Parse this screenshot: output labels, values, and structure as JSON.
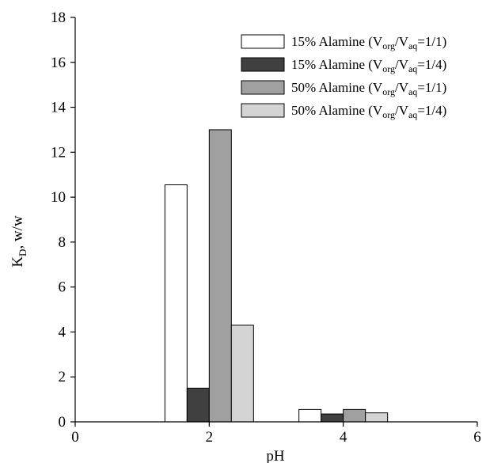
{
  "chart_data": {
    "type": "bar",
    "title": "",
    "xlabel": "pH",
    "ylabel": "K",
    "ylabel_sub": "D",
    "ylabel_unit": ", w/w",
    "x_categories": [
      2,
      4
    ],
    "xlim": [
      0,
      6
    ],
    "ylim": [
      0,
      18
    ],
    "xticks": [
      "0",
      "2",
      "4",
      "6"
    ],
    "yticks": [
      "0",
      "2",
      "4",
      "6",
      "8",
      "10",
      "12",
      "14",
      "16",
      "18"
    ],
    "grid": false,
    "legend_position": "top-right",
    "series": [
      {
        "name": "15% Alamine (Vorg/Vaq=1/1)",
        "legend": {
          "pre": "15%  Alamine  (V",
          "sub1": "org",
          "mid": "/V",
          "sub2": "aq",
          "post": "=1/1)"
        },
        "color": "#ffffff",
        "values": [
          10.55,
          0.55
        ]
      },
      {
        "name": "15% Alamine (Vorg/Vaq=1/4)",
        "legend": {
          "pre": "15%  Alamine  (V",
          "sub1": "org",
          "mid": "/V",
          "sub2": "aq",
          "post": "=1/4)"
        },
        "color": "#404040",
        "values": [
          1.5,
          0.35
        ]
      },
      {
        "name": "50% Alamine (Vorg/Vaq=1/1)",
        "legend": {
          "pre": "50%  Alamine  (V",
          "sub1": "org",
          "mid": "/V",
          "sub2": "aq",
          "post": "=1/1)"
        },
        "color": "#a0a0a0",
        "values": [
          13.0,
          0.55
        ]
      },
      {
        "name": "50% Alamine (Vorg/Vaq=1/4)",
        "legend": {
          "pre": "50%  Alamine  (V",
          "sub1": "org",
          "mid": "/V",
          "sub2": "aq",
          "post": "=1/4)"
        },
        "color": "#d4d4d4",
        "values": [
          4.3,
          0.4
        ]
      }
    ]
  }
}
